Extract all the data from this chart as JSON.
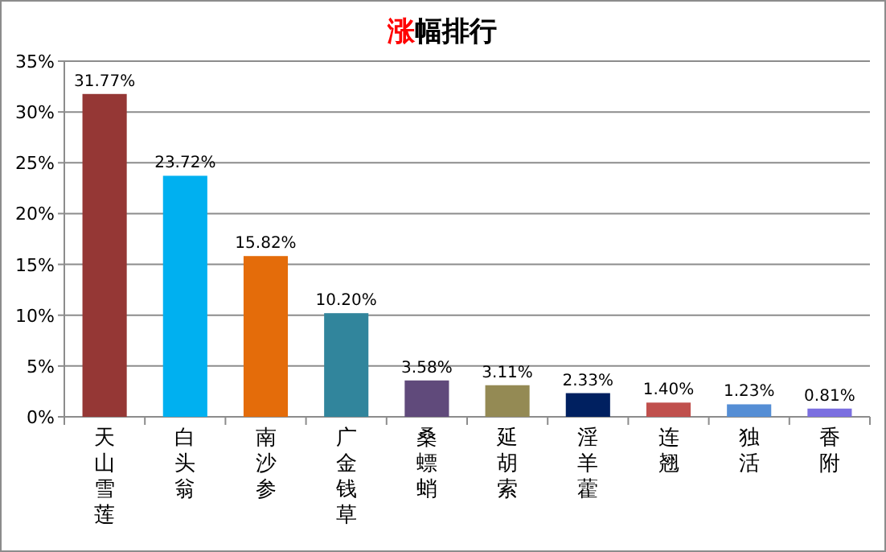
{
  "chart_data": {
    "type": "bar",
    "title": "涨幅排行",
    "categories": [
      "天山雪莲",
      "白头翁",
      "南沙参",
      "广金钱草",
      "桑螵蛸",
      "延胡索",
      "淫羊藿",
      "连翘",
      "独活",
      "香附"
    ],
    "values": [
      31.77,
      23.72,
      15.82,
      10.2,
      3.58,
      3.11,
      2.33,
      1.4,
      1.23,
      0.81
    ],
    "value_labels": [
      "31.77%",
      "23.72%",
      "15.82%",
      "10.20%",
      "3.58%",
      "3.11%",
      "2.33%",
      "1.40%",
      "1.23%",
      "0.81%"
    ],
    "colors": [
      "#953735",
      "#00b0f0",
      "#e46c0a",
      "#31859c",
      "#604a7b",
      "#948a54",
      "#002060",
      "#c0504d",
      "#558ed5",
      "#7b6fe0"
    ],
    "ylim": [
      0,
      35
    ],
    "yticks": [
      {
        "value": 0,
        "label": "0%"
      },
      {
        "value": 5,
        "label": "5%"
      },
      {
        "value": 10,
        "label": "10%"
      },
      {
        "value": 15,
        "label": "15%"
      },
      {
        "value": 20,
        "label": "20%"
      },
      {
        "value": 25,
        "label": "25%"
      },
      {
        "value": 30,
        "label": "30%"
      },
      {
        "value": 35,
        "label": "35%"
      }
    ],
    "grid": "y"
  }
}
